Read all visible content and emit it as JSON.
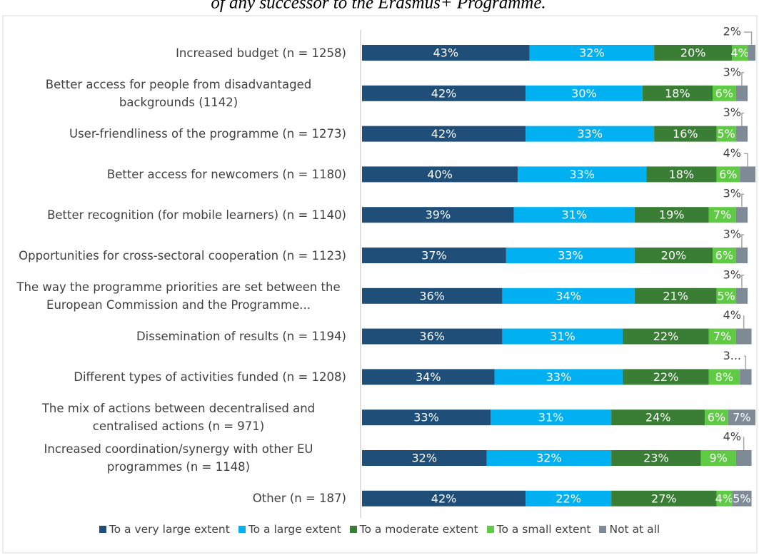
{
  "chart_data": {
    "type": "stacked-bar-horizontal",
    "title": "of any successor to the Erasmus+ Programme.",
    "categories": [
      "Increased budget (n = 1258)",
      "Better access for people from disadvantaged backgrounds (1142)",
      "User-friendliness of the programme (n = 1273)",
      "Better access for newcomers  (n = 1180)",
      "Better recognition (for mobile learners)  (n = 1140)",
      "Opportunities for cross-sectoral cooperation  (n = 1123)",
      "The way the programme priorities are set between the European Commission and the Programme...",
      "Dissemination of results  (n = 1194)",
      "Different types of activities funded (n = 1208)",
      "The mix of actions between decentralised and centralised actions (n = 971)",
      "Increased coordination/synergy with other EU programmes (n = 1148)",
      "Other  (n = 187)"
    ],
    "xlim": [
      0,
      101
    ],
    "legend": "bottom",
    "series": [
      {
        "name": "To a very large extent",
        "color": "#1f4e79",
        "values": [
          43,
          42,
          42,
          40,
          39,
          37,
          36,
          36,
          34,
          33,
          32,
          42
        ],
        "value_labels": [
          "43%",
          "42%",
          "42%",
          "40%",
          "39%",
          "37%",
          "36%",
          "36%",
          "34%",
          "33%",
          "32%",
          "42%"
        ]
      },
      {
        "name": "To a large extent",
        "color": "#00b0f0",
        "values": [
          32,
          30,
          33,
          33,
          31,
          33,
          34,
          31,
          33,
          31,
          32,
          22
        ],
        "value_labels": [
          "32%",
          "30%",
          "33%",
          "33%",
          "31%",
          "33%",
          "34%",
          "31%",
          "33%",
          "31%",
          "32%",
          "22%"
        ]
      },
      {
        "name": "To a moderate extent",
        "color": "#3a7d34",
        "values": [
          20,
          18,
          16,
          18,
          19,
          20,
          21,
          22,
          22,
          24,
          23,
          27
        ],
        "value_labels": [
          "20%",
          "18%",
          "16%",
          "18%",
          "19%",
          "20%",
          "21%",
          "22%",
          "22%",
          "24%",
          "23%",
          "27%"
        ]
      },
      {
        "name": "To a small extent",
        "color": "#5fcb45",
        "values": [
          4,
          6,
          5,
          6,
          7,
          6,
          5,
          7,
          8,
          6,
          9,
          4
        ],
        "value_labels": [
          "4%",
          "6%",
          "5%",
          "6%",
          "7%",
          "6%",
          "5%",
          "7%",
          "8%",
          "6%",
          "9%",
          "4%"
        ]
      },
      {
        "name": "Not at all",
        "color": "#7f8a97",
        "values": [
          2,
          3,
          3,
          4,
          3,
          3,
          3,
          4,
          3,
          7,
          4,
          5
        ],
        "value_labels": [
          "2%",
          "3%",
          "3%",
          "4%",
          "3%",
          "3%",
          "3%",
          "4%",
          "3...",
          "7%",
          "4%",
          "5%"
        ]
      }
    ]
  }
}
